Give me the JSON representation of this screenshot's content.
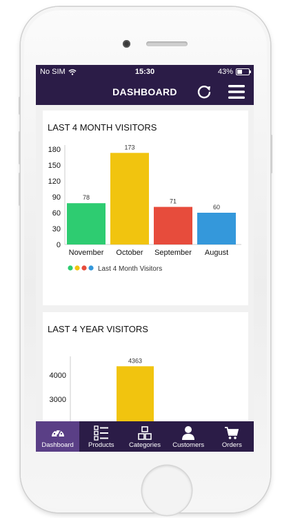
{
  "statusbar": {
    "carrier": "No SIM",
    "time": "15:30",
    "battery": "43%",
    "battery_level": 0.43
  },
  "navbar": {
    "title": "DASHBOARD",
    "refresh_icon": "refresh-icon",
    "menu_icon": "hamburger-menu-icon"
  },
  "colors": {
    "bar_bg": "#2b1c47",
    "active_tab": "#5a3f86",
    "green": "#2ecc71",
    "yellow": "#f1c40f",
    "red": "#e74c3c",
    "blue": "#3498db"
  },
  "monthly": {
    "title": "LAST 4 MONTH VISITORS",
    "legend": "Last 4 Month Visitors",
    "chart_data": {
      "type": "bar",
      "categories": [
        "November",
        "October",
        "September",
        "August"
      ],
      "values": [
        78,
        173,
        71,
        60
      ],
      "colors": [
        "#2ecc71",
        "#f1c40f",
        "#e74c3c",
        "#3498db"
      ],
      "yticks": [
        0,
        30,
        60,
        90,
        120,
        150,
        180
      ],
      "ylim": [
        0,
        180
      ],
      "legend_position": "bottom-left"
    }
  },
  "yearly": {
    "title": "LAST 4 YEAR VISITORS",
    "chart_data": {
      "type": "bar",
      "values": [
        4363
      ],
      "colors": [
        "#f1c40f"
      ],
      "yticks": [
        3000,
        4000
      ],
      "bar_index": 1
    }
  },
  "tabs": [
    {
      "label": "Dashboard",
      "icon": "dashboard-gauge-icon"
    },
    {
      "label": "Products",
      "icon": "list-icon"
    },
    {
      "label": "Categories",
      "icon": "cubes-icon"
    },
    {
      "label": "Customers",
      "icon": "user-icon"
    },
    {
      "label": "Orders",
      "icon": "cart-icon"
    }
  ]
}
